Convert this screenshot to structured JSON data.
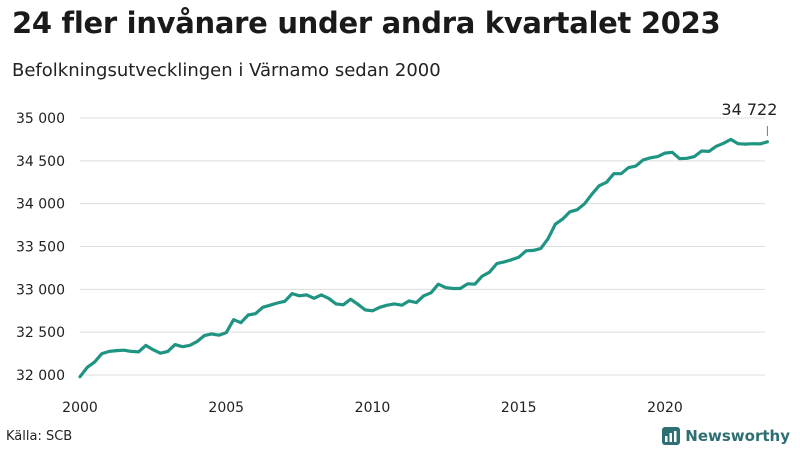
{
  "header": {
    "title": "24 fler invånare under andra kvartalet 2023",
    "subtitle": "Befolkningsutvecklingen i Värnamo sedan 2000"
  },
  "footer": {
    "source": "Källa: SCB",
    "brand": "Newsworthy",
    "brand_icon": "bar-chart-logo-icon"
  },
  "colors": {
    "line": "#1f9483",
    "grid": "#dddddd",
    "brand": "#2e6f73"
  },
  "chart_data": {
    "type": "line",
    "title": "24 fler invånare under andra kvartalet 2023",
    "subtitle": "Befolkningsutvecklingen i Värnamo sedan 2000",
    "xlabel": "",
    "ylabel": "",
    "xlim": [
      2000,
      2023.5
    ],
    "ylim": [
      32000,
      35000
    ],
    "x_ticks": [
      2000,
      2005,
      2010,
      2015,
      2020
    ],
    "y_ticks": [
      32000,
      32500,
      33000,
      33500,
      34000,
      34500,
      35000
    ],
    "y_tick_labels": [
      "32 000",
      "32 500",
      "33 000",
      "33 500",
      "34 000",
      "34 500",
      "35 000"
    ],
    "grid": "horizontal",
    "last_value_label": "34 722",
    "series": [
      {
        "x": [
          2000.0,
          2000.25,
          2000.5,
          2000.75,
          2001.0,
          2001.25,
          2001.5,
          2001.75,
          2002.0,
          2002.25,
          2002.5,
          2002.75,
          2003.0,
          2003.25,
          2003.5,
          2003.75,
          2004.0,
          2004.25,
          2004.5,
          2004.75,
          2005.0,
          2005.25,
          2005.5,
          2005.75,
          2006.0,
          2006.25,
          2006.5,
          2006.75,
          2007.0,
          2007.25,
          2007.5,
          2007.75,
          2008.0,
          2008.25,
          2008.5,
          2008.75,
          2009.0,
          2009.25,
          2009.5,
          2009.75,
          2010.0,
          2010.25,
          2010.5,
          2010.75,
          2011.0,
          2011.25,
          2011.5,
          2011.75,
          2012.0,
          2012.25,
          2012.5,
          2012.75,
          2013.0,
          2013.25,
          2013.5,
          2013.75,
          2014.0,
          2014.25,
          2014.5,
          2014.75,
          2015.0,
          2015.25,
          2015.5,
          2015.75,
          2016.0,
          2016.25,
          2016.5,
          2016.75,
          2017.0,
          2017.25,
          2017.5,
          2017.75,
          2018.0,
          2018.25,
          2018.5,
          2018.75,
          2019.0,
          2019.25,
          2019.5,
          2019.75,
          2020.0,
          2020.25,
          2020.5,
          2020.75,
          2021.0,
          2021.25,
          2021.5,
          2021.75,
          2022.0,
          2022.25,
          2022.5,
          2022.75,
          2023.0,
          2023.25,
          2023.5
        ],
        "values": [
          31980,
          32090,
          32150,
          32250,
          32275,
          32285,
          32290,
          32275,
          32270,
          32345,
          32295,
          32255,
          32275,
          32355,
          32330,
          32345,
          32390,
          32460,
          32480,
          32465,
          32495,
          32645,
          32610,
          32700,
          32715,
          32790,
          32815,
          32840,
          32860,
          32950,
          32925,
          32935,
          32895,
          32935,
          32895,
          32830,
          32820,
          32885,
          32825,
          32760,
          32750,
          32790,
          32815,
          32830,
          32815,
          32865,
          32845,
          32925,
          32960,
          33060,
          33020,
          33010,
          33010,
          33065,
          33060,
          33155,
          33200,
          33300,
          33320,
          33345,
          33375,
          33450,
          33455,
          33475,
          33590,
          33760,
          33820,
          33905,
          33930,
          34000,
          34110,
          34210,
          34250,
          34350,
          34350,
          34420,
          34440,
          34510,
          34535,
          34550,
          34590,
          34600,
          34525,
          34530,
          34550,
          34615,
          34610,
          34670,
          34705,
          34750,
          34700,
          34695,
          34700,
          34698,
          34722
        ]
      }
    ]
  }
}
